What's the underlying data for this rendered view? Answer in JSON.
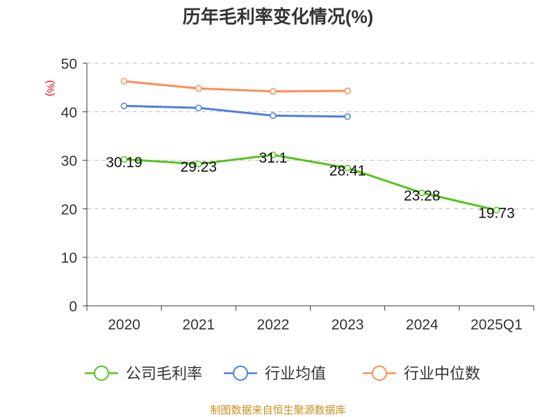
{
  "chart_data": {
    "type": "line",
    "title": "历年毛利率变化情况(%)",
    "ylabel": "(%)",
    "xlabel": "",
    "ylim": [
      0,
      50
    ],
    "yticks": [
      0,
      10,
      20,
      30,
      40,
      50
    ],
    "grid": true,
    "legend_position": "bottom",
    "categories": [
      "2020",
      "2021",
      "2022",
      "2023",
      "2024",
      "2025Q1"
    ],
    "series": [
      {
        "name": "公司毛利率",
        "color": "#52c41a",
        "values": [
          30.19,
          29.23,
          31.1,
          28.41,
          23.28,
          19.73
        ],
        "labels": [
          "30.19",
          "29.23",
          "31.1",
          "28.41",
          "23.28",
          "19.73"
        ]
      },
      {
        "name": "行业均值",
        "color": "#4a7ee0",
        "values": [
          41.2,
          40.8,
          39.2,
          39.0,
          null,
          null
        ]
      },
      {
        "name": "行业中位数",
        "color": "#ff8c55",
        "values": [
          46.3,
          44.8,
          44.2,
          44.3,
          null,
          null
        ]
      }
    ]
  },
  "source": "制图数据来自恒生聚源数据库"
}
